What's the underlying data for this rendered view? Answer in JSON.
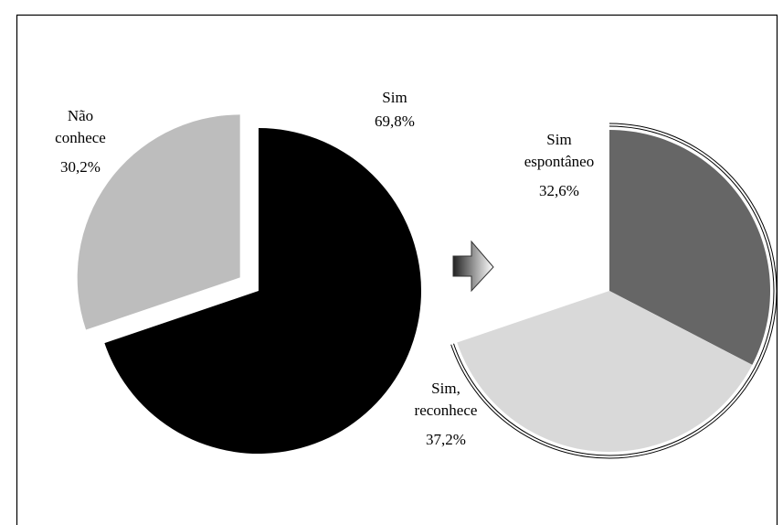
{
  "chart_data": [
    {
      "type": "pie",
      "categories": [
        "Sim",
        "Não conhece"
      ],
      "values": [
        69.8,
        30.2
      ],
      "value_labels": [
        "69,8%",
        "30,2%"
      ],
      "colors": [
        "#000000",
        "#bdbdbd"
      ],
      "explode": [
        false,
        true
      ]
    },
    {
      "type": "pie",
      "categories": [
        "Sim espontâneo",
        "Sim, reconhece"
      ],
      "values": [
        32.6,
        37.2
      ],
      "value_labels": [
        "32,6%",
        "37,2%"
      ],
      "colors": [
        "#666666",
        "#d9d9d9"
      ],
      "explode": [
        false,
        false
      ],
      "outline": true
    }
  ]
}
